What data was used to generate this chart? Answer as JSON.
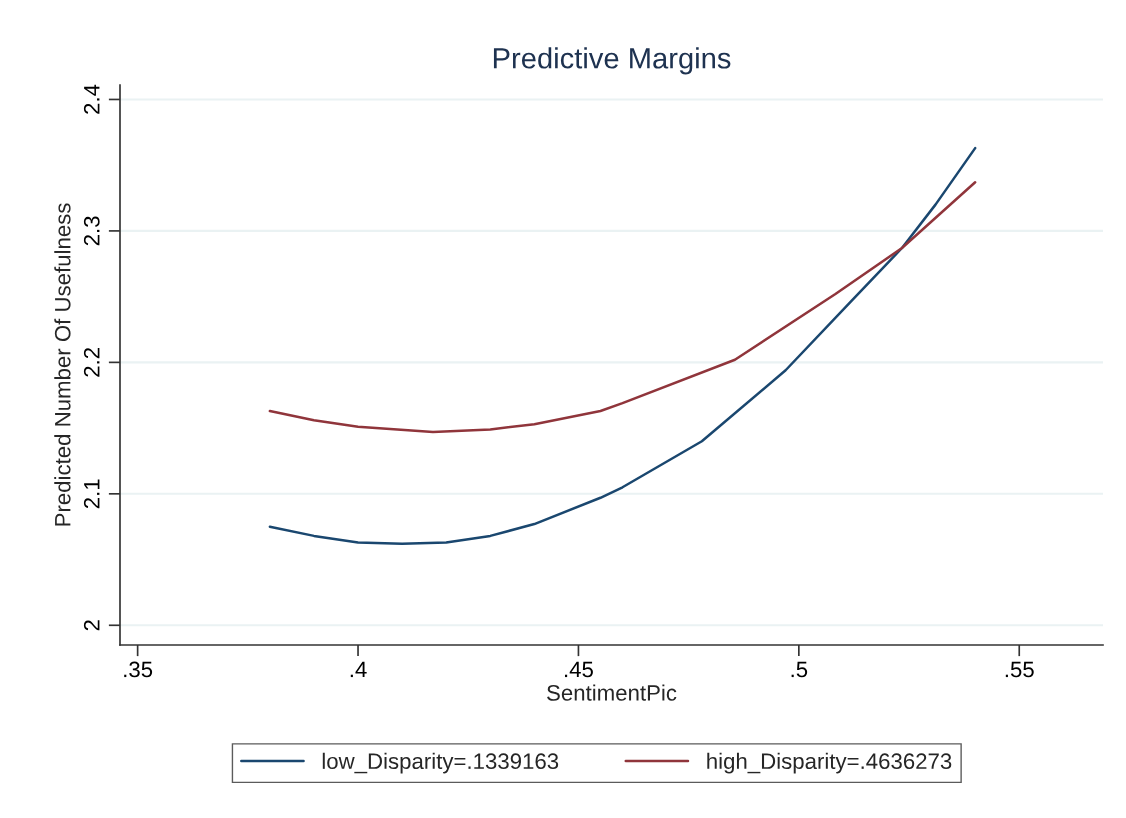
{
  "chart_data": {
    "type": "line",
    "title": "Predictive Margins",
    "xlabel": "SentimentPic",
    "ylabel": "Predicted Number Of Usefulness",
    "series": [
      {
        "name": "low_Disparity=.1339163",
        "color": "#1a476f",
        "x": [
          0.38,
          0.39,
          0.4,
          0.41,
          0.42,
          0.43,
          0.44,
          0.455,
          0.46,
          0.478,
          0.497,
          0.512,
          0.5234,
          0.531,
          0.54
        ],
        "values": [
          2.075,
          2.068,
          2.063,
          2.062,
          2.063,
          2.068,
          2.077,
          2.097,
          2.105,
          2.14,
          2.194,
          2.247,
          2.287,
          2.32,
          2.363
        ]
      },
      {
        "name": "high_Disparity=.4636273",
        "color": "#90353b",
        "x": [
          0.38,
          0.39,
          0.4,
          0.417,
          0.43,
          0.44,
          0.455,
          0.46,
          0.4855,
          0.5083,
          0.5234,
          0.54
        ],
        "values": [
          2.163,
          2.156,
          2.151,
          2.147,
          2.149,
          2.153,
          2.163,
          2.169,
          2.202,
          2.252,
          2.287,
          2.337
        ]
      }
    ],
    "xlim": [
      0.346,
      0.569
    ],
    "ylim": [
      1.985,
      2.411
    ],
    "xticks": [
      {
        "value": 0.35,
        "label": ".35"
      },
      {
        "value": 0.4,
        "label": ".4"
      },
      {
        "value": 0.45,
        "label": ".45"
      },
      {
        "value": 0.5,
        "label": ".5"
      },
      {
        "value": 0.55,
        "label": ".55"
      }
    ],
    "yticks": [
      2,
      2.1,
      2.2,
      2.3,
      2.4
    ],
    "grid": "y",
    "legend": "bottom",
    "marker": "none",
    "line_style": "solid"
  }
}
